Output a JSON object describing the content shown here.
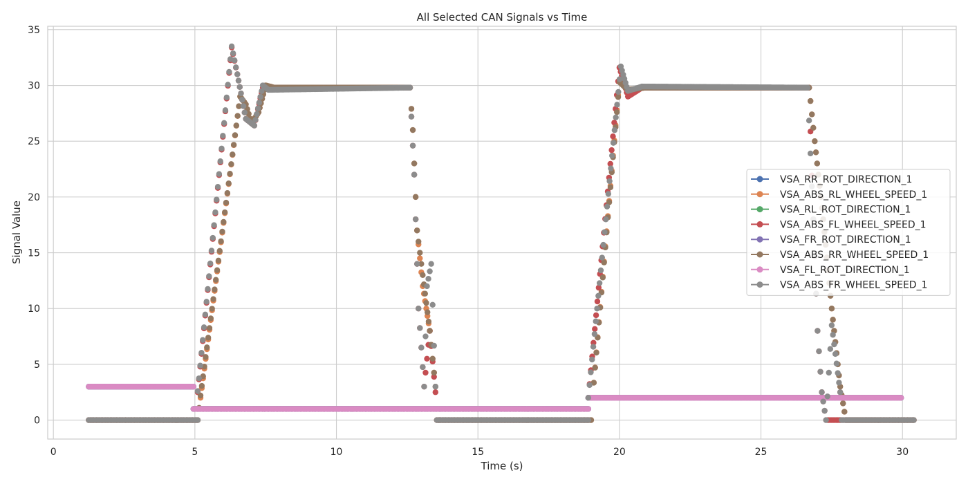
{
  "chart_data": {
    "type": "scatter",
    "title": "All Selected CAN Signals vs Time",
    "xlabel": "Time (s)",
    "ylabel": "Signal Value",
    "xlim": [
      -0.2,
      31.9
    ],
    "ylim": [
      -1.7,
      35.3
    ],
    "xticks": [
      0,
      5,
      10,
      15,
      20,
      25,
      30
    ],
    "yticks": [
      0,
      5,
      10,
      15,
      20,
      25,
      30,
      35
    ],
    "grid": true,
    "legend_position": "center-right",
    "marker": "circle",
    "series": [
      {
        "name": "VSA_RR_ROT_DIRECTION_1",
        "color": "#4c72b0",
        "segments": [
          [
            [
              1.25,
              3
            ],
            [
              4.95,
              3
            ]
          ],
          [
            [
              4.95,
              1
            ],
            [
              18.9,
              1
            ]
          ],
          [
            [
              18.9,
              2
            ],
            [
              29.95,
              2
            ]
          ]
        ]
      },
      {
        "name": "VSA_ABS_RL_WHEEL_SPEED_1",
        "color": "#dd8452",
        "segments": [
          [
            [
              1.25,
              0
            ],
            [
              5.1,
              0
            ],
            [
              5.2,
              2
            ],
            [
              6.6,
              29
            ],
            [
              6.8,
              28.3
            ],
            [
              7.0,
              26.6
            ],
            [
              7.25,
              27.6
            ],
            [
              7.5,
              30
            ],
            [
              7.8,
              29.8
            ],
            [
              12.6,
              29.8
            ],
            [
              12.7,
              26
            ],
            [
              12.85,
              17
            ],
            [
              13.05,
              12
            ],
            [
              13.3,
              8
            ],
            [
              13.5,
              3
            ],
            [
              13.55,
              0
            ],
            [
              19.0,
              0
            ],
            [
              19.05,
              2
            ],
            [
              20.0,
              30.5
            ],
            [
              20.3,
              29.6
            ],
            [
              20.9,
              29.8
            ],
            [
              26.7,
              29.8
            ],
            [
              26.9,
              25
            ],
            [
              27.2,
              18
            ],
            [
              27.5,
              10
            ],
            [
              27.8,
              3
            ],
            [
              28.0,
              0
            ],
            [
              30.4,
              0
            ]
          ]
        ]
      },
      {
        "name": "VSA_RL_ROT_DIRECTION_1",
        "color": "#55a868",
        "segments": [
          [
            [
              1.25,
              3
            ],
            [
              4.95,
              3
            ]
          ],
          [
            [
              4.95,
              1
            ],
            [
              18.9,
              1
            ]
          ],
          [
            [
              18.9,
              2
            ],
            [
              29.95,
              2
            ]
          ]
        ]
      },
      {
        "name": "VSA_ABS_FL_WHEEL_SPEED_1",
        "color": "#c44e52",
        "segments": [
          [
            [
              1.25,
              0
            ],
            [
              5.1,
              0
            ],
            [
              5.1,
              2.5
            ],
            [
              6.3,
              33.4
            ],
            [
              6.5,
              31
            ],
            [
              6.8,
              27
            ],
            [
              7.1,
              26.4
            ],
            [
              7.4,
              29.8
            ],
            [
              12.6,
              29.8
            ],
            [
              12.75,
              22
            ],
            [
              12.9,
              10
            ],
            [
              13.1,
              3
            ],
            [
              13.3,
              8
            ],
            [
              13.5,
              2.5
            ],
            [
              13.55,
              0
            ],
            [
              18.9,
              0
            ],
            [
              18.9,
              2
            ],
            [
              20.0,
              31.6
            ],
            [
              20.3,
              29
            ],
            [
              20.8,
              29.8
            ],
            [
              26.7,
              29.8
            ],
            [
              26.85,
              18
            ],
            [
              27.0,
              8
            ],
            [
              27.15,
              2.5
            ],
            [
              27.3,
              0
            ],
            [
              27.8,
              0
            ],
            [
              27.8,
              2.5
            ],
            [
              27.8,
              0
            ],
            [
              30.4,
              0
            ]
          ]
        ]
      },
      {
        "name": "VSA_FR_ROT_DIRECTION_1",
        "color": "#8172b3",
        "segments": [
          [
            [
              1.25,
              3
            ],
            [
              4.95,
              3
            ]
          ],
          [
            [
              4.95,
              1
            ],
            [
              18.9,
              1
            ]
          ],
          [
            [
              18.9,
              2
            ],
            [
              29.95,
              2
            ]
          ]
        ]
      },
      {
        "name": "VSA_ABS_RR_WHEEL_SPEED_1",
        "color": "#937860",
        "segments": [
          [
            [
              1.25,
              0
            ],
            [
              5.1,
              0
            ],
            [
              5.2,
              2.2
            ],
            [
              6.6,
              29
            ],
            [
              6.8,
              28.3
            ],
            [
              7.0,
              26.6
            ],
            [
              7.25,
              27.6
            ],
            [
              7.5,
              30
            ],
            [
              7.8,
              29.8
            ],
            [
              12.6,
              29.8
            ],
            [
              12.7,
              26
            ],
            [
              12.85,
              17
            ],
            [
              13.05,
              13
            ],
            [
              13.3,
              8
            ],
            [
              13.5,
              3
            ],
            [
              13.55,
              0
            ],
            [
              19.0,
              0
            ],
            [
              19.05,
              2
            ],
            [
              20.0,
              30.3
            ],
            [
              20.3,
              29.6
            ],
            [
              20.9,
              29.8
            ],
            [
              26.7,
              29.8
            ],
            [
              26.9,
              25
            ],
            [
              27.2,
              18
            ],
            [
              27.5,
              10
            ],
            [
              27.8,
              3
            ],
            [
              28.0,
              0
            ],
            [
              30.4,
              0
            ]
          ]
        ]
      },
      {
        "name": "VSA_FL_ROT_DIRECTION_1",
        "color": "#da8bc3",
        "segments": [
          [
            [
              1.25,
              3
            ],
            [
              4.95,
              3
            ]
          ],
          [
            [
              4.95,
              1
            ],
            [
              18.9,
              1
            ]
          ],
          [
            [
              18.9,
              2
            ],
            [
              29.95,
              2
            ]
          ]
        ]
      },
      {
        "name": "VSA_ABS_FR_WHEEL_SPEED_1",
        "color": "#8c8c8c",
        "segments": [
          [
            [
              1.25,
              0
            ],
            [
              5.1,
              0
            ],
            [
              5.1,
              2.6
            ],
            [
              6.3,
              33.5
            ],
            [
              6.5,
              31
            ],
            [
              6.8,
              27
            ],
            [
              7.1,
              26.4
            ],
            [
              7.4,
              30
            ],
            [
              7.6,
              29.6
            ],
            [
              12.6,
              29.8
            ],
            [
              12.75,
              22
            ],
            [
              12.9,
              10
            ],
            [
              13.1,
              3
            ],
            [
              13.2,
              12
            ],
            [
              13.35,
              14
            ],
            [
              13.5,
              3
            ],
            [
              13.55,
              0
            ],
            [
              18.9,
              0
            ],
            [
              18.9,
              2
            ],
            [
              20.05,
              31.7
            ],
            [
              20.3,
              29.5
            ],
            [
              20.8,
              29.9
            ],
            [
              26.65,
              29.8
            ],
            [
              26.85,
              18
            ],
            [
              27.0,
              8
            ],
            [
              27.15,
              2.5
            ],
            [
              27.3,
              0
            ],
            [
              27.5,
              8.5
            ],
            [
              27.8,
              2.5
            ],
            [
              27.85,
              0
            ],
            [
              30.4,
              0
            ]
          ]
        ]
      }
    ]
  }
}
